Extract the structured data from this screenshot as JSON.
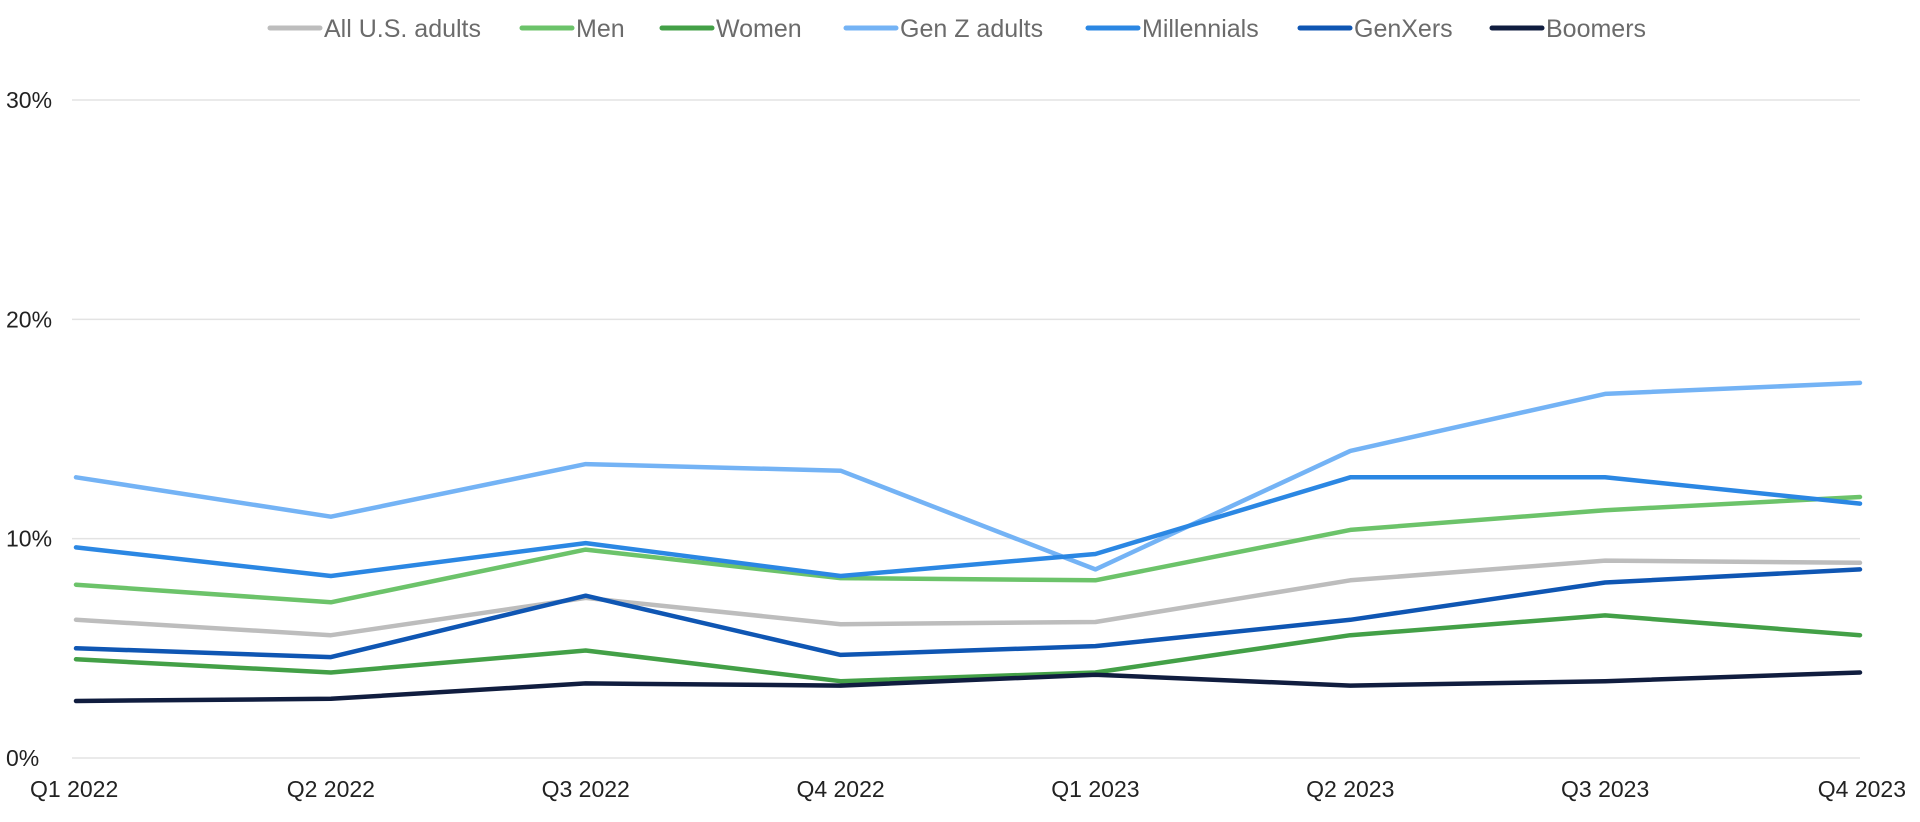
{
  "chart_data": {
    "type": "line",
    "title": "",
    "xlabel": "",
    "ylabel": "",
    "ylim": [
      0,
      30
    ],
    "yticks": [
      0,
      10,
      20,
      30
    ],
    "ytick_labels": [
      "0%",
      "10%",
      "20%",
      "30%"
    ],
    "grid": true,
    "legend_position": "top",
    "categories": [
      "Q1 2022",
      "Q2 2022",
      "Q3 2022",
      "Q4 2022",
      "Q1 2023",
      "Q2 2023",
      "Q3 2023",
      "Q4 2023"
    ],
    "series": [
      {
        "name": "All U.S. adults",
        "color": "#bdbdbd",
        "values": [
          6.3,
          5.6,
          7.3,
          6.1,
          6.2,
          8.1,
          9.0,
          8.9
        ]
      },
      {
        "name": "Men",
        "color": "#6cc36a",
        "values": [
          7.9,
          7.1,
          9.5,
          8.2,
          8.1,
          10.4,
          11.3,
          11.9
        ]
      },
      {
        "name": "Women",
        "color": "#43a047",
        "values": [
          4.5,
          3.9,
          4.9,
          3.5,
          3.9,
          5.6,
          6.5,
          5.6
        ]
      },
      {
        "name": "Gen Z adults",
        "color": "#74b3f5",
        "values": [
          12.8,
          11.0,
          13.4,
          13.1,
          8.6,
          14.0,
          16.6,
          17.1
        ]
      },
      {
        "name": "Millennials",
        "color": "#2b87e3",
        "values": [
          9.6,
          8.3,
          9.8,
          8.3,
          9.3,
          12.8,
          12.8,
          11.6
        ]
      },
      {
        "name": "GenXers",
        "color": "#0f56b3",
        "values": [
          5.0,
          4.6,
          7.4,
          4.7,
          5.1,
          6.3,
          8.0,
          8.6
        ]
      },
      {
        "name": "Boomers",
        "color": "#101d3f",
        "values": [
          2.6,
          2.7,
          3.4,
          3.3,
          3.8,
          3.3,
          3.5,
          3.9
        ]
      }
    ]
  }
}
